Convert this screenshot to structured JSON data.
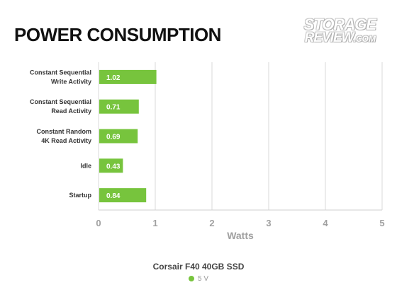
{
  "title": "POWER CONSUMPTION",
  "logo": {
    "line1": "STORAGE",
    "line2": "REVIEW",
    "suffix": ".COM"
  },
  "colors": {
    "bar": "#77c43d",
    "grid": "#d9d9d9",
    "axis_text": "#a0a0a0"
  },
  "chart_data": {
    "type": "bar",
    "orientation": "horizontal",
    "categories": [
      "Constant Sequential\nWrite Activity",
      "Constant Sequential\nRead Activity",
      "Constant Random\n4K Read Activity",
      "Idle",
      "Startup"
    ],
    "series": [
      {
        "name": "5 V",
        "values": [
          1.02,
          0.71,
          0.69,
          0.43,
          0.84
        ]
      }
    ],
    "xlabel": "Watts",
    "xlim": [
      0,
      5
    ],
    "xticks": [
      "0",
      "1",
      "2",
      "3",
      "4",
      "5"
    ],
    "legend_title": "Corsair F40 40GB SSD",
    "legend_position": "bottom",
    "grid": true
  }
}
